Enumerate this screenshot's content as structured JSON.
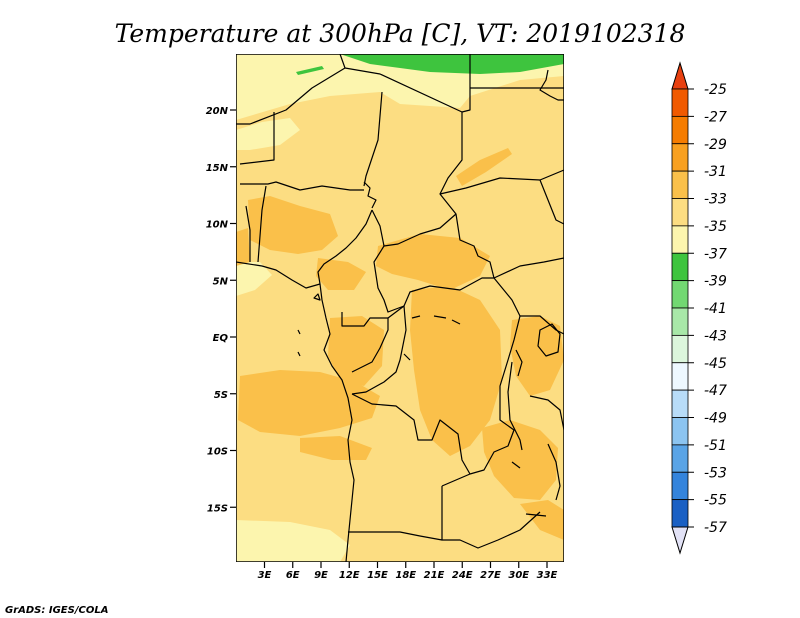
{
  "title": "Temperature at 300hPa [C], VT: 2019102318",
  "credit": "GrADS: IGES/COLA",
  "lat_ticks": [
    "20N",
    "15N",
    "10N",
    "5N",
    "EQ",
    "5S",
    "10S",
    "15S"
  ],
  "lon_ticks": [
    "3E",
    "6E",
    "9E",
    "12E",
    "15E",
    "18E",
    "21E",
    "24E",
    "27E",
    "30E",
    "33E"
  ],
  "colorbar": {
    "labels": [
      "-25",
      "-27",
      "-29",
      "-31",
      "-33",
      "-35",
      "-37",
      "-39",
      "-41",
      "-43",
      "-45",
      "-47",
      "-49",
      "-51",
      "-53",
      "-55",
      "-57"
    ],
    "colors": [
      "#f05a00",
      "#f57c00",
      "#f8a020",
      "#fac04a",
      "#fcdd82",
      "#fcf5ae",
      "#3ec43e",
      "#72d872",
      "#a8e8a8",
      "#dcf6dc",
      "#eef8ff",
      "#b8dcf8",
      "#8cc4f0",
      "#5aa4e6",
      "#3484dc",
      "#1a60c4",
      "#0a40a0",
      "#0a1e78"
    ],
    "top_color": "#e84010",
    "bottom_color": "#e2e2f6"
  },
  "map_colors": {
    "base": "#fcdd82",
    "warm": "#fac04a",
    "cool": "#fcf5ae",
    "green": "#3ec43e"
  }
}
